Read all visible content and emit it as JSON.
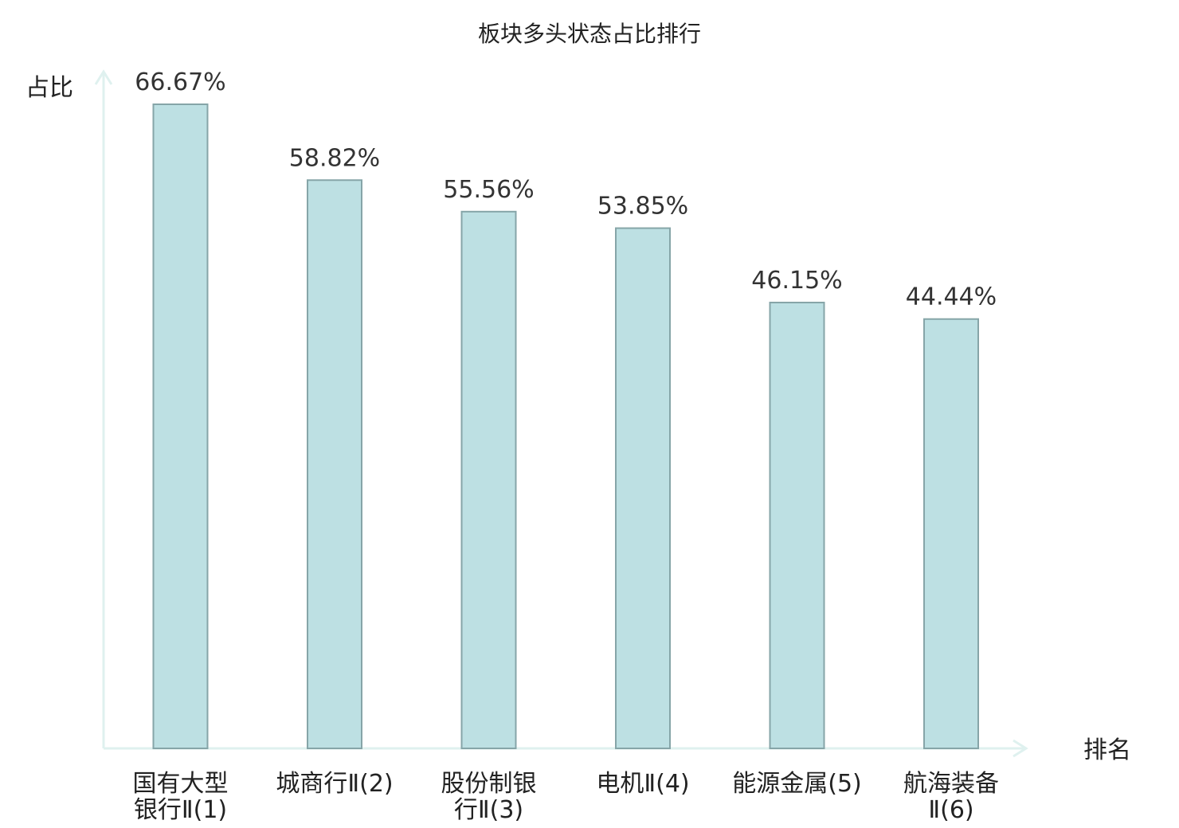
{
  "chart_data": {
    "type": "bar",
    "title": "板块多头状态占比排行",
    "ylabel": "占比",
    "xlabel": "排名",
    "categories": [
      [
        "国有大型",
        "银行Ⅱ(1)"
      ],
      [
        "城商行Ⅱ(2)"
      ],
      [
        "股份制银",
        "行Ⅱ(3)"
      ],
      [
        "电机Ⅱ(4)"
      ],
      [
        "能源金属(5)"
      ],
      [
        "航海装备",
        "Ⅱ(6)"
      ]
    ],
    "values": [
      66.67,
      58.82,
      55.56,
      53.85,
      46.15,
      44.44
    ],
    "value_labels": [
      "66.67%",
      "58.82%",
      "55.56%",
      "53.85%",
      "46.15%",
      "44.44%"
    ],
    "highlight_index": 5,
    "ylim": [
      0,
      66.67
    ],
    "grid": false,
    "colors": {
      "bar_fill": "#bde0e3",
      "bar_stroke": "#86a5a8",
      "axis": "#dff1ef",
      "highlight_text": "#e01010",
      "text": "#222222"
    }
  }
}
